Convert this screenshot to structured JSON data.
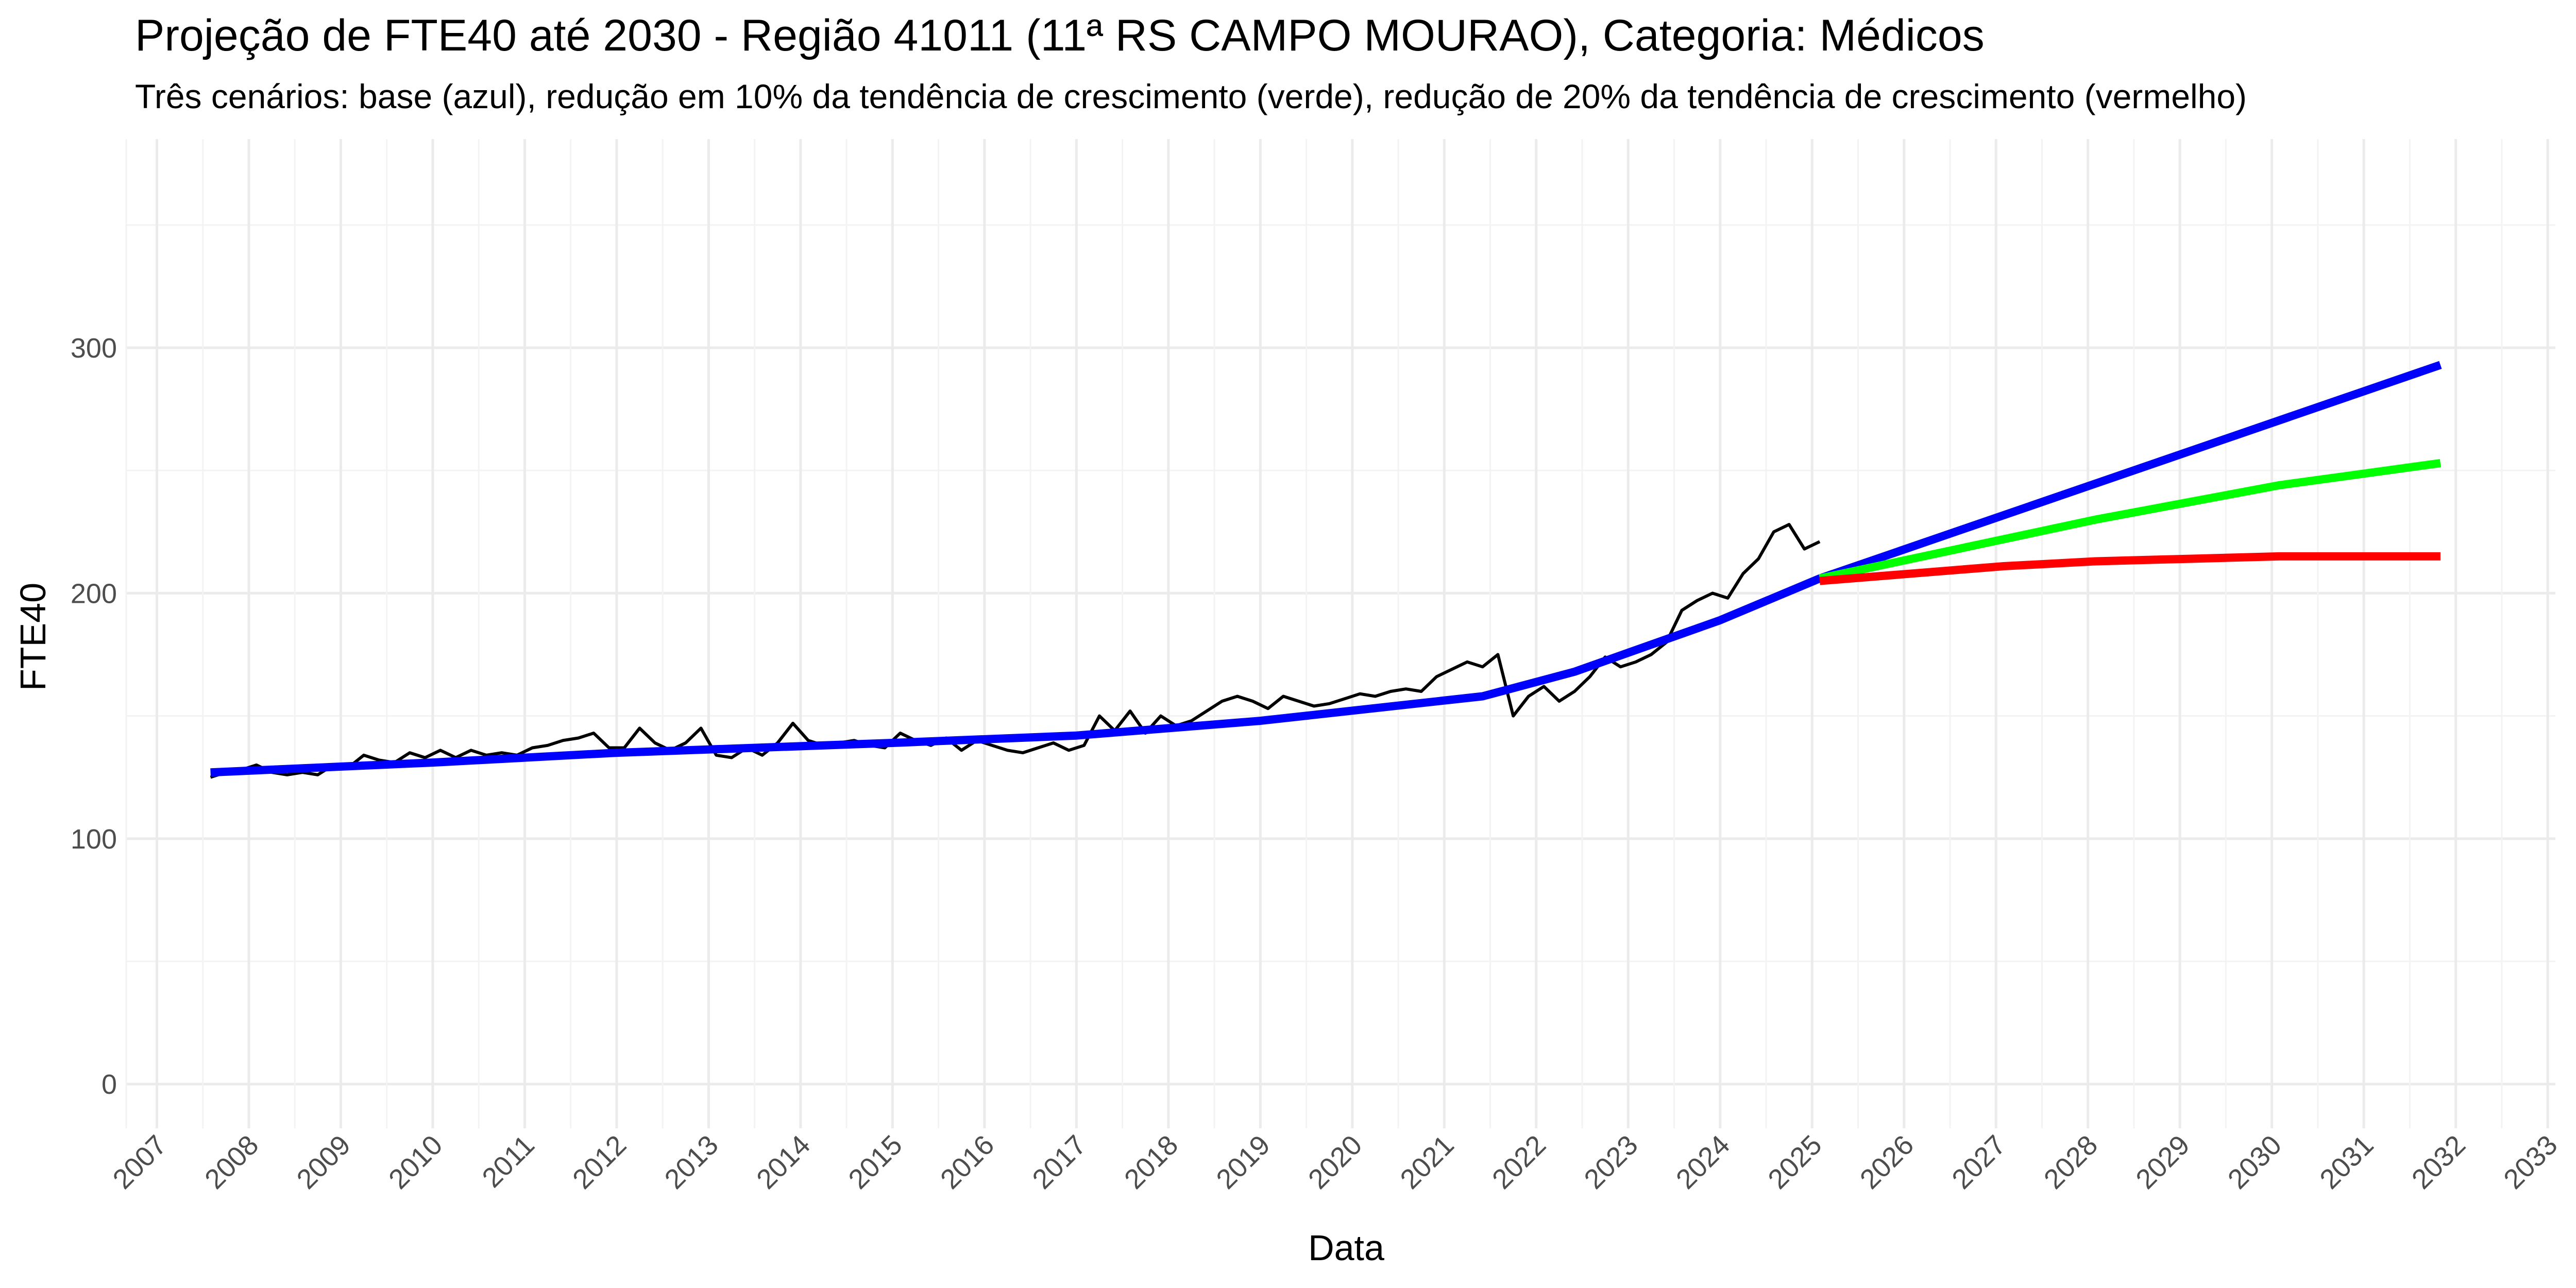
{
  "chart_data": {
    "type": "line",
    "title": "Projeção de FTE40 até 2030 - Região 41011 (11ª RS CAMPO MOURAO), Categoria: Médicos",
    "subtitle": "Três cenários: base (azul), redução em 10% da tendência de crescimento (verde), redução de 20% da tendência de crescimento (vermelho)",
    "xlabel": "Data",
    "ylabel": "FTE40",
    "xlim": [
      "2006-09-01",
      "2033-02-01"
    ],
    "ylim": [
      -18,
      385
    ],
    "x_ticks": [
      "2007",
      "2008",
      "2009",
      "2010",
      "2011",
      "2012",
      "2013",
      "2014",
      "2015",
      "2016",
      "2017",
      "2018",
      "2019",
      "2020",
      "2021",
      "2022",
      "2023",
      "2024",
      "2025",
      "2026",
      "2027",
      "2028",
      "2029",
      "2030",
      "2031",
      "2032",
      "2033"
    ],
    "y_ticks": [
      0,
      100,
      200,
      300
    ],
    "grid": true,
    "legend": "none",
    "series": [
      {
        "color": "#000000",
        "x": [
          "2007-08",
          "2007-10",
          "2007-12",
          "2008-02",
          "2008-04",
          "2008-06",
          "2008-08",
          "2008-10",
          "2008-12",
          "2009-02",
          "2009-04",
          "2009-06",
          "2009-08",
          "2009-10",
          "2009-12",
          "2010-02",
          "2010-04",
          "2010-06",
          "2010-08",
          "2010-10",
          "2010-12",
          "2011-02",
          "2011-04",
          "2011-06",
          "2011-08",
          "2011-10",
          "2011-12",
          "2012-02",
          "2012-04",
          "2012-06",
          "2012-08",
          "2012-10",
          "2012-12",
          "2013-02",
          "2013-04",
          "2013-06",
          "2013-08",
          "2013-10",
          "2013-12",
          "2014-02",
          "2014-04",
          "2014-06",
          "2014-08",
          "2014-10",
          "2014-12",
          "2015-02",
          "2015-04",
          "2015-06",
          "2015-08",
          "2015-10",
          "2015-12",
          "2016-02",
          "2016-04",
          "2016-06",
          "2016-08",
          "2016-10",
          "2016-12",
          "2017-02",
          "2017-04",
          "2017-06",
          "2017-08",
          "2017-10",
          "2017-12",
          "2018-02",
          "2018-04",
          "2018-06",
          "2018-08",
          "2018-10",
          "2018-12",
          "2019-02",
          "2019-04",
          "2019-06",
          "2019-08",
          "2019-10",
          "2019-12",
          "2020-02",
          "2020-04",
          "2020-06",
          "2020-08",
          "2020-10",
          "2020-12",
          "2021-02",
          "2021-04",
          "2021-06",
          "2021-08",
          "2021-10",
          "2021-12",
          "2022-02",
          "2022-04",
          "2022-06",
          "2022-08",
          "2022-10",
          "2022-12",
          "2023-02",
          "2023-04",
          "2023-06",
          "2023-08",
          "2023-10",
          "2023-12",
          "2024-02",
          "2024-04",
          "2024-06",
          "2024-08",
          "2024-10",
          "2024-12",
          "2025-02"
        ],
        "values": [
          125,
          127,
          128,
          130,
          127,
          126,
          127,
          126,
          130,
          129,
          134,
          132,
          131,
          135,
          133,
          136,
          133,
          136,
          134,
          135,
          134,
          137,
          138,
          140,
          141,
          143,
          137,
          137,
          145,
          139,
          136,
          139,
          145,
          134,
          133,
          137,
          134,
          139,
          147,
          140,
          138,
          139,
          140,
          138,
          137,
          143,
          140,
          138,
          141,
          136,
          140,
          138,
          136,
          135,
          137,
          139,
          136,
          138,
          150,
          144,
          152,
          143,
          150,
          146,
          148,
          152,
          156,
          158,
          156,
          153,
          158,
          156,
          154,
          155,
          157,
          159,
          158,
          160,
          161,
          160,
          166,
          169,
          172,
          170,
          175,
          150,
          158,
          162,
          156,
          160,
          166,
          174,
          170,
          172,
          175,
          180,
          193,
          197,
          200,
          198,
          208,
          214,
          225,
          228,
          218,
          221
        ]
      },
      {
        "color": "#0000ff",
        "x": [
          "2007-08",
          "2010-01",
          "2012-01",
          "2015-01",
          "2017-01",
          "2019-01",
          "2021-06",
          "2022-06",
          "2024-01",
          "2025-02",
          "2031-11"
        ],
        "values": [
          127,
          131,
          135,
          139,
          142,
          148,
          158,
          168,
          189,
          206,
          293
        ]
      },
      {
        "color": "#00ff00",
        "x": [
          "2025-02",
          "2026-02",
          "2027-02",
          "2028-02",
          "2029-02",
          "2030-02",
          "2031-11"
        ],
        "values": [
          206,
          214,
          222,
          230,
          237,
          244,
          253
        ]
      },
      {
        "color": "#ff0000",
        "x": [
          "2025-02",
          "2026-02",
          "2027-02",
          "2028-02",
          "2029-02",
          "2030-02",
          "2031-11"
        ],
        "values": [
          205,
          208,
          211,
          213,
          214,
          215,
          215
        ]
      }
    ]
  }
}
